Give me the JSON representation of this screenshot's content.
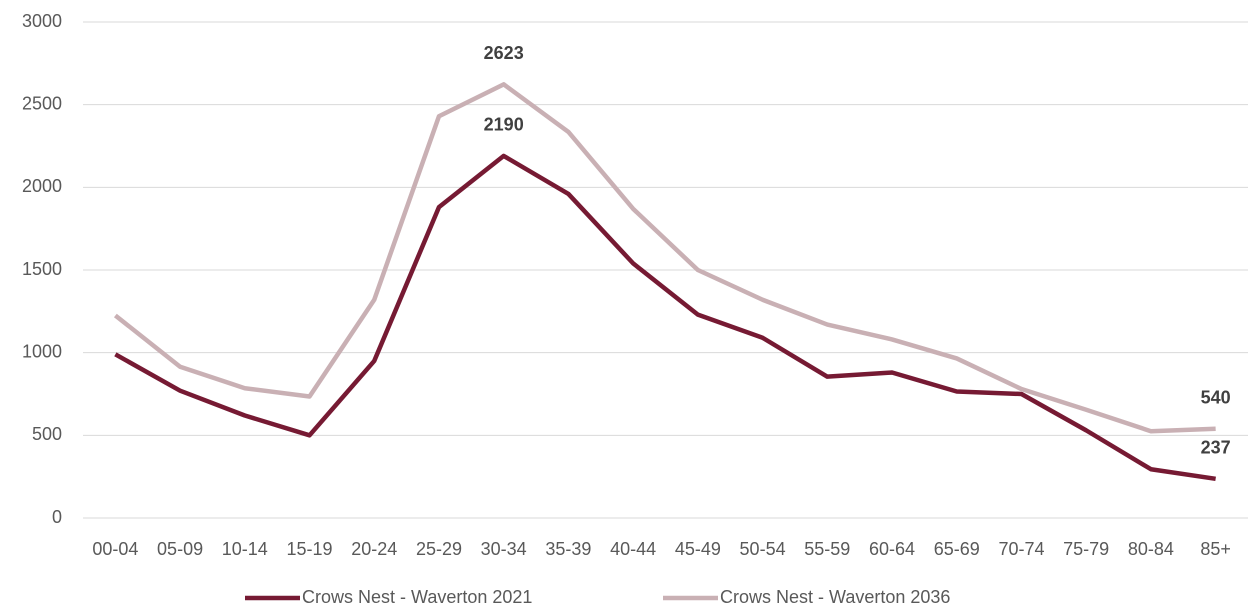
{
  "chart_data": {
    "type": "line",
    "categories": [
      "00-04",
      "05-09",
      "10-14",
      "15-19",
      "20-24",
      "25-29",
      "30-34",
      "35-39",
      "40-44",
      "45-49",
      "50-54",
      "55-59",
      "60-64",
      "65-69",
      "70-74",
      "75-79",
      "80-84",
      "85+"
    ],
    "series": [
      {
        "name": "Crows Nest - Waverton 2021",
        "color": "#761a33",
        "values": [
          990,
          770,
          620,
          500,
          950,
          1880,
          2190,
          1960,
          1540,
          1230,
          1090,
          855,
          880,
          765,
          750,
          530,
          295,
          237
        ],
        "value_labels": [
          null,
          null,
          null,
          null,
          null,
          null,
          "2190",
          null,
          null,
          null,
          null,
          null,
          null,
          null,
          null,
          null,
          null,
          "237"
        ]
      },
      {
        "name": "Crows Nest - Waverton 2036",
        "color": "#c9b0b4",
        "values": [
          1225,
          915,
          785,
          735,
          1320,
          2430,
          2623,
          2335,
          1870,
          1500,
          1320,
          1170,
          1080,
          965,
          780,
          655,
          525,
          540
        ],
        "value_labels": [
          null,
          null,
          null,
          null,
          null,
          null,
          "2623",
          null,
          null,
          null,
          null,
          null,
          null,
          null,
          null,
          null,
          null,
          "540"
        ]
      }
    ],
    "ylim": [
      0,
      3000
    ],
    "yticks": [
      0,
      500,
      1000,
      1500,
      2000,
      2500,
      3000
    ],
    "grid": true,
    "legend": "bottom"
  }
}
